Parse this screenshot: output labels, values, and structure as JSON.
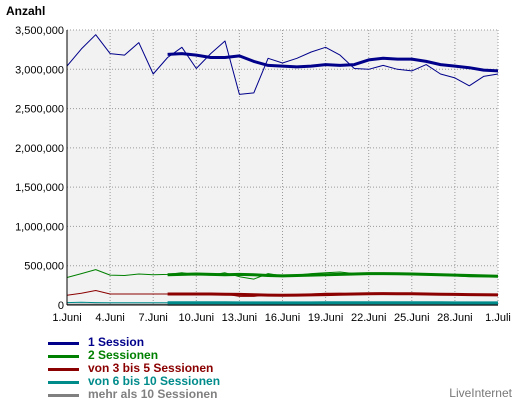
{
  "chart_data": {
    "type": "line",
    "title": "",
    "ylabel": "Anzahl",
    "xlabel": "",
    "ylim": [
      0,
      3500000
    ],
    "yticks": [
      0,
      500000,
      1000000,
      1500000,
      2000000,
      2500000,
      3000000,
      3500000
    ],
    "ytick_labels": [
      "0",
      "500,000",
      "1,000,000",
      "1,500,000",
      "2,000,000",
      "2,500,000",
      "3,000,000",
      "3,500,000"
    ],
    "xtick_labels": [
      "1.Juni",
      "4.Juni",
      "7.Juni",
      "10.Juni",
      "13.Juni",
      "16.Juni",
      "19.Juni",
      "22.Juni",
      "25.Juni",
      "28.Juni",
      "1.Juli"
    ],
    "x_days": [
      "1.Juni",
      "2.Juni",
      "3.Juni",
      "4.Juni",
      "5.Juni",
      "6.Juni",
      "7.Juni",
      "8.Juni",
      "9.Juni",
      "10.Juni",
      "11.Juni",
      "12.Juni",
      "13.Juni",
      "14.Juni",
      "15.Juni",
      "16.Juni",
      "17.Juni",
      "18.Juni",
      "19.Juni",
      "20.Juni",
      "21.Juni",
      "22.Juni",
      "23.Juni",
      "24.Juni",
      "25.Juni",
      "26.Juni",
      "27.Juni",
      "28.Juni",
      "29.Juni",
      "30.Juni",
      "1.Juli"
    ],
    "grid": true,
    "background": "#f2f2f2",
    "legend_position": "bottom-left",
    "series": [
      {
        "name": "1 Session",
        "color": "#00008b",
        "style": "daily",
        "values": [
          3040000,
          3260000,
          3440000,
          3200000,
          3180000,
          3340000,
          2940000,
          3150000,
          3280000,
          3010000,
          3200000,
          3360000,
          2680000,
          2700000,
          3140000,
          3080000,
          3140000,
          3220000,
          3280000,
          3180000,
          3010000,
          3000000,
          3050000,
          3000000,
          2980000,
          3060000,
          2940000,
          2890000,
          2790000,
          2910000,
          2940000
        ]
      },
      {
        "name": "1 Session",
        "color": "#00008b",
        "style": "average",
        "start_index": 7,
        "values": [
          3190000,
          3200000,
          3180000,
          3150000,
          3150000,
          3170000,
          3100000,
          3050000,
          3040000,
          3030000,
          3040000,
          3060000,
          3050000,
          3060000,
          3120000,
          3140000,
          3130000,
          3130000,
          3100000,
          3060000,
          3040000,
          3020000,
          2990000,
          2980000
        ]
      },
      {
        "name": "2 Sessionen",
        "color": "#008000",
        "style": "daily",
        "values": [
          350000,
          400000,
          450000,
          380000,
          375000,
          395000,
          385000,
          390000,
          410000,
          385000,
          380000,
          410000,
          360000,
          330000,
          400000,
          370000,
          380000,
          400000,
          410000,
          420000,
          400000,
          395000,
          400000,
          395000,
          390000,
          400000,
          380000,
          370000,
          360000,
          360000,
          360000
        ]
      },
      {
        "name": "2 Sessionen",
        "color": "#008000",
        "style": "average",
        "start_index": 7,
        "values": [
          385000,
          390000,
          395000,
          390000,
          385000,
          390000,
          385000,
          375000,
          370000,
          375000,
          380000,
          385000,
          390000,
          395000,
          400000,
          400000,
          398000,
          395000,
          390000,
          385000,
          380000,
          375000,
          370000,
          365000
        ]
      },
      {
        "name": "von 3 bis 5 Sessionen",
        "color": "#8b0000",
        "style": "daily",
        "values": [
          125000,
          150000,
          185000,
          140000,
          140000,
          140000,
          140000,
          140000,
          140000,
          140000,
          140000,
          140000,
          110000,
          110000,
          130000,
          125000,
          130000,
          140000,
          150000,
          150000,
          140000,
          145000,
          145000,
          140000,
          140000,
          145000,
          135000,
          130000,
          125000,
          125000,
          125000
        ]
      },
      {
        "name": "von 3 bis 5 Sessionen",
        "color": "#8b0000",
        "style": "average",
        "start_index": 7,
        "values": [
          140000,
          140000,
          140000,
          140000,
          138000,
          135000,
          130000,
          126000,
          125000,
          126000,
          128000,
          132000,
          136000,
          140000,
          143000,
          145000,
          144000,
          142000,
          140000,
          138000,
          135000,
          132000,
          130000,
          128000
        ]
      },
      {
        "name": "von 6 bis 10 Sessionen",
        "color": "#008b8b",
        "style": "daily",
        "values": [
          30000,
          35000,
          30000,
          28000,
          28000,
          28000,
          28000,
          28000,
          28000,
          28000,
          28000,
          28000,
          25000,
          25000,
          27000,
          27000,
          27000,
          28000,
          29000,
          29000,
          28000,
          28000,
          28000,
          28000,
          28000,
          28000,
          27000,
          27000,
          26000,
          26000,
          26000
        ]
      },
      {
        "name": "von 6 bis 10 Sessionen",
        "color": "#008b8b",
        "style": "average",
        "start_index": 7,
        "values": [
          28000,
          28000,
          28000,
          28000,
          28000,
          27000,
          27000,
          27000,
          27000,
          27000,
          27000,
          28000,
          28000,
          28000,
          28000,
          28000,
          28000,
          28000,
          28000,
          28000,
          27000,
          27000,
          27000,
          27000
        ]
      },
      {
        "name": "mehr als 10 Sessionen",
        "color": "#808080",
        "style": "daily",
        "values": [
          10000,
          12000,
          11000,
          10000,
          10000,
          10000,
          10000,
          10000,
          10000,
          10000,
          10000,
          10000,
          9000,
          9000,
          10000,
          10000,
          10000,
          10000,
          10000,
          10000,
          10000,
          10000,
          10000,
          10000,
          10000,
          10000,
          10000,
          10000,
          9000,
          9000,
          9000
        ]
      },
      {
        "name": "mehr als 10 Sessionen",
        "color": "#808080",
        "style": "average",
        "start_index": 7,
        "values": [
          10000,
          10000,
          10000,
          10000,
          10000,
          10000,
          10000,
          10000,
          10000,
          10000,
          10000,
          10000,
          10000,
          10000,
          10000,
          10000,
          10000,
          10000,
          10000,
          10000,
          10000,
          10000,
          10000,
          10000
        ]
      }
    ]
  },
  "legend": [
    {
      "label": "1 Session",
      "color": "#00008b"
    },
    {
      "label": "2 Sessionen",
      "color": "#008000"
    },
    {
      "label": "von 3 bis 5 Sessionen",
      "color": "#8b0000"
    },
    {
      "label": "von 6 bis 10 Sessionen",
      "color": "#008b8b"
    },
    {
      "label": "mehr als 10 Sessionen",
      "color": "#808080"
    }
  ],
  "watermark": "LiveInternet"
}
